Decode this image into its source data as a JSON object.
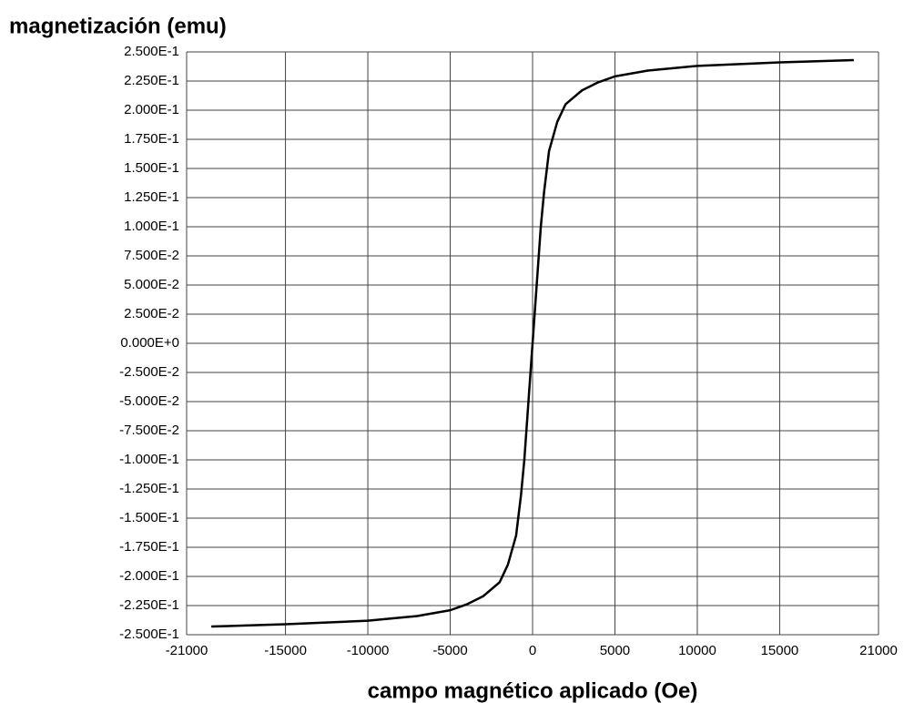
{
  "chart_data": {
    "type": "line",
    "ylabel": "magnetización (emu)",
    "xlabel": "campo magnético aplicado (Oe)",
    "x": [
      -19500,
      -15000,
      -10000,
      -7000,
      -5000,
      -4000,
      -3000,
      -2000,
      -1500,
      -1000,
      -700,
      -500,
      -300,
      0,
      300,
      500,
      700,
      1000,
      1500,
      2000,
      3000,
      4000,
      5000,
      7000,
      10000,
      15000,
      19500
    ],
    "values": [
      -0.243,
      -0.241,
      -0.238,
      -0.234,
      -0.229,
      -0.224,
      -0.217,
      -0.205,
      -0.19,
      -0.165,
      -0.13,
      -0.1,
      -0.06,
      0,
      0.06,
      0.1,
      0.13,
      0.165,
      0.19,
      0.205,
      0.217,
      0.224,
      0.229,
      0.234,
      0.238,
      0.241,
      0.243
    ],
    "color": "#000000",
    "xlim": [
      -21000,
      21000
    ],
    "xticks": [
      -21000,
      -15000,
      -10000,
      -5000,
      0,
      5000,
      10000,
      15000,
      21000
    ],
    "ylim": [
      -0.25,
      0.25
    ],
    "yticks": [
      {
        "value": 0.25,
        "label": "2.500E-1"
      },
      {
        "value": 0.225,
        "label": "2.250E-1"
      },
      {
        "value": 0.2,
        "label": "2.000E-1"
      },
      {
        "value": 0.175,
        "label": "1.750E-1"
      },
      {
        "value": 0.15,
        "label": "1.500E-1"
      },
      {
        "value": 0.125,
        "label": "1.250E-1"
      },
      {
        "value": 0.1,
        "label": "1.000E-1"
      },
      {
        "value": 0.075,
        "label": "7.500E-2"
      },
      {
        "value": 0.05,
        "label": "5.000E-2"
      },
      {
        "value": 0.025,
        "label": "2.500E-2"
      },
      {
        "value": 0,
        "label": "0.000E+0"
      },
      {
        "value": -0.025,
        "label": "-2.500E-2"
      },
      {
        "value": -0.05,
        "label": "-5.000E-2"
      },
      {
        "value": -0.075,
        "label": "-7.500E-2"
      },
      {
        "value": -0.1,
        "label": "-1.000E-1"
      },
      {
        "value": -0.125,
        "label": "-1.250E-1"
      },
      {
        "value": -0.15,
        "label": "-1.500E-1"
      },
      {
        "value": -0.175,
        "label": "-1.750E-1"
      },
      {
        "value": -0.2,
        "label": "-2.000E-1"
      },
      {
        "value": -0.225,
        "label": "-2.250E-1"
      },
      {
        "value": -0.25,
        "label": "-2.500E-1"
      }
    ],
    "grid": true
  }
}
